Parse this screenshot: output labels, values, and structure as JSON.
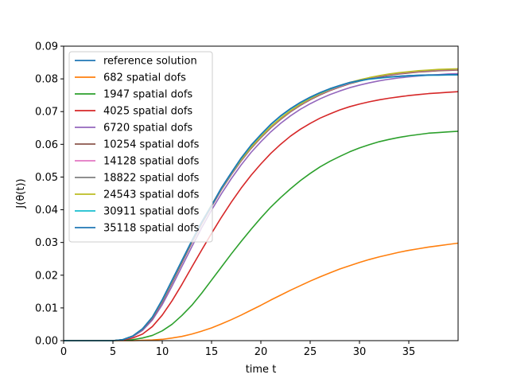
{
  "chart_data": {
    "type": "line",
    "title": "",
    "xlabel": "time t",
    "ylabel": "J(θ(t))",
    "xlim": [
      0,
      40
    ],
    "ylim": [
      0,
      0.09
    ],
    "x_ticks": [
      0,
      5,
      10,
      15,
      20,
      25,
      30,
      35
    ],
    "x_tick_labels": [
      "0",
      "5",
      "10",
      "15",
      "20",
      "25",
      "30",
      "35"
    ],
    "y_ticks": [
      0,
      0.01,
      0.02,
      0.03,
      0.04,
      0.05,
      0.06,
      0.07,
      0.08,
      0.09
    ],
    "y_tick_labels": [
      "0.00",
      "0.01",
      "0.02",
      "0.03",
      "0.04",
      "0.05",
      "0.06",
      "0.07",
      "0.08",
      "0.09"
    ],
    "grid": false,
    "legend_position": "top-left",
    "x": [
      0,
      2.5,
      5,
      6,
      7,
      8,
      9,
      10,
      11,
      12,
      13,
      14,
      15,
      16,
      17,
      18,
      19,
      20,
      21,
      22,
      23,
      24,
      25,
      26,
      27,
      28,
      29,
      30,
      31,
      32,
      33,
      34,
      35,
      36,
      37,
      38,
      39,
      40
    ],
    "series": [
      {
        "name": "reference solution",
        "color": "#1f77b4",
        "values": [
          0,
          0,
          0,
          0.0003,
          0.0014,
          0.0036,
          0.0072,
          0.0125,
          0.0185,
          0.0245,
          0.0305,
          0.0362,
          0.0413,
          0.0467,
          0.0513,
          0.0558,
          0.0597,
          0.063,
          0.0661,
          0.0687,
          0.0709,
          0.0728,
          0.0744,
          0.0758,
          0.077,
          0.078,
          0.0789,
          0.0795,
          0.08,
          0.0803,
          0.0806,
          0.0808,
          0.081,
          0.0811,
          0.0812,
          0.0812,
          0.0813,
          0.0813
        ]
      },
      {
        "name": "682 spatial dofs",
        "color": "#ff7f0e",
        "values": [
          0,
          0,
          0,
          0,
          0,
          0.0001,
          0.0002,
          0.0004,
          0.0008,
          0.0013,
          0.002,
          0.0029,
          0.0039,
          0.0051,
          0.0064,
          0.0078,
          0.0093,
          0.0108,
          0.0124,
          0.0139,
          0.0154,
          0.0168,
          0.0182,
          0.0195,
          0.0207,
          0.0219,
          0.0229,
          0.0239,
          0.0248,
          0.0256,
          0.0263,
          0.027,
          0.0276,
          0.0281,
          0.0286,
          0.029,
          0.0294,
          0.0298
        ]
      },
      {
        "name": "1947 spatial dofs",
        "color": "#2ca02c",
        "values": [
          0,
          0,
          0,
          0.0001,
          0.0003,
          0.0008,
          0.0016,
          0.003,
          0.005,
          0.0077,
          0.0108,
          0.0145,
          0.0185,
          0.0225,
          0.0265,
          0.0303,
          0.034,
          0.0375,
          0.0408,
          0.0437,
          0.0464,
          0.0489,
          0.0511,
          0.0531,
          0.0548,
          0.0563,
          0.0577,
          0.0589,
          0.0599,
          0.0608,
          0.0615,
          0.0621,
          0.0626,
          0.063,
          0.0634,
          0.0636,
          0.0638,
          0.064
        ]
      },
      {
        "name": "4025 spatial dofs",
        "color": "#d62728",
        "values": [
          0,
          0,
          0,
          0.0002,
          0.0008,
          0.002,
          0.0043,
          0.0078,
          0.0122,
          0.0172,
          0.0225,
          0.0277,
          0.0328,
          0.0377,
          0.0423,
          0.0466,
          0.0505,
          0.054,
          0.0572,
          0.06,
          0.0625,
          0.0646,
          0.0664,
          0.068,
          0.0693,
          0.0705,
          0.0715,
          0.0723,
          0.073,
          0.0736,
          0.0741,
          0.0745,
          0.0749,
          0.0752,
          0.0755,
          0.0757,
          0.0759,
          0.0761
        ]
      },
      {
        "name": "6720 spatial dofs",
        "color": "#9467bd",
        "values": [
          0,
          0,
          0,
          0.0003,
          0.0012,
          0.0031,
          0.0063,
          0.011,
          0.0167,
          0.0227,
          0.0287,
          0.0345,
          0.0399,
          0.0449,
          0.0495,
          0.0537,
          0.0575,
          0.0608,
          0.0638,
          0.0664,
          0.0687,
          0.0707,
          0.0724,
          0.0739,
          0.0752,
          0.0763,
          0.0773,
          0.0781,
          0.0788,
          0.0794,
          0.0799,
          0.0803,
          0.0806,
          0.0809,
          0.0811,
          0.0813,
          0.0815,
          0.0816
        ]
      },
      {
        "name": "10254 spatial dofs",
        "color": "#8c564b",
        "values": [
          0,
          0,
          0,
          0.0003,
          0.0013,
          0.0034,
          0.0068,
          0.0118,
          0.0177,
          0.0238,
          0.0299,
          0.0357,
          0.041,
          0.0461,
          0.0507,
          0.0549,
          0.0587,
          0.062,
          0.065,
          0.0676,
          0.0699,
          0.0719,
          0.0736,
          0.0751,
          0.0764,
          0.0775,
          0.0785,
          0.0793,
          0.08,
          0.0806,
          0.0811,
          0.0815,
          0.0818,
          0.0821,
          0.0823,
          0.0825,
          0.0826,
          0.0827
        ]
      },
      {
        "name": "14128 spatial dofs",
        "color": "#e377c2",
        "values": [
          0,
          0,
          0,
          0.0003,
          0.0013,
          0.0035,
          0.007,
          0.0121,
          0.0181,
          0.0242,
          0.0302,
          0.036,
          0.0413,
          0.0463,
          0.0509,
          0.0551,
          0.0589,
          0.0622,
          0.0652,
          0.0678,
          0.0701,
          0.0721,
          0.0738,
          0.0753,
          0.0766,
          0.0777,
          0.0787,
          0.0795,
          0.0802,
          0.0808,
          0.0813,
          0.0817,
          0.082,
          0.0823,
          0.0825,
          0.0827,
          0.0828,
          0.0829
        ]
      },
      {
        "name": "18822 spatial dofs",
        "color": "#7f7f7f",
        "values": [
          0,
          0,
          0,
          0.0003,
          0.0014,
          0.0035,
          0.0071,
          0.0122,
          0.0182,
          0.0243,
          0.0303,
          0.0361,
          0.0414,
          0.0464,
          0.051,
          0.0552,
          0.059,
          0.0623,
          0.0653,
          0.0679,
          0.0702,
          0.0722,
          0.0739,
          0.0754,
          0.0767,
          0.0778,
          0.0788,
          0.0796,
          0.0803,
          0.0809,
          0.0814,
          0.0818,
          0.0821,
          0.0824,
          0.0826,
          0.0828,
          0.0829,
          0.083
        ]
      },
      {
        "name": "24543 spatial dofs",
        "color": "#bcbd22",
        "values": [
          0,
          0,
          0,
          0.0003,
          0.0014,
          0.0036,
          0.0072,
          0.0123,
          0.0183,
          0.0244,
          0.0304,
          0.0362,
          0.0415,
          0.0465,
          0.0511,
          0.0553,
          0.0591,
          0.0624,
          0.0654,
          0.068,
          0.0703,
          0.0723,
          0.074,
          0.0755,
          0.0768,
          0.0779,
          0.0789,
          0.0797,
          0.0804,
          0.081,
          0.0815,
          0.0819,
          0.0822,
          0.0825,
          0.0827,
          0.0829,
          0.083,
          0.0831
        ]
      },
      {
        "name": "30911 spatial dofs",
        "color": "#17becf",
        "values": [
          0,
          0,
          0,
          0.0003,
          0.0014,
          0.0036,
          0.0072,
          0.0124,
          0.0184,
          0.0245,
          0.0305,
          0.0362,
          0.0413,
          0.0466,
          0.0512,
          0.0557,
          0.0596,
          0.0629,
          0.066,
          0.0686,
          0.0708,
          0.0727,
          0.0743,
          0.0757,
          0.0769,
          0.0779,
          0.0788,
          0.0794,
          0.0799,
          0.0802,
          0.0805,
          0.0807,
          0.0809,
          0.081,
          0.0811,
          0.0811,
          0.0812,
          0.0812
        ]
      },
      {
        "name": "35118 spatial dofs",
        "color": "#1f77b4",
        "values": [
          0,
          0,
          0,
          0.0003,
          0.0014,
          0.0036,
          0.0072,
          0.0125,
          0.0185,
          0.0245,
          0.0305,
          0.0362,
          0.0413,
          0.0467,
          0.0513,
          0.0558,
          0.0597,
          0.063,
          0.0661,
          0.0687,
          0.0709,
          0.0728,
          0.0744,
          0.0758,
          0.077,
          0.078,
          0.0789,
          0.0795,
          0.08,
          0.0803,
          0.0806,
          0.0808,
          0.081,
          0.0811,
          0.0812,
          0.0812,
          0.0813,
          0.0813
        ]
      }
    ]
  }
}
